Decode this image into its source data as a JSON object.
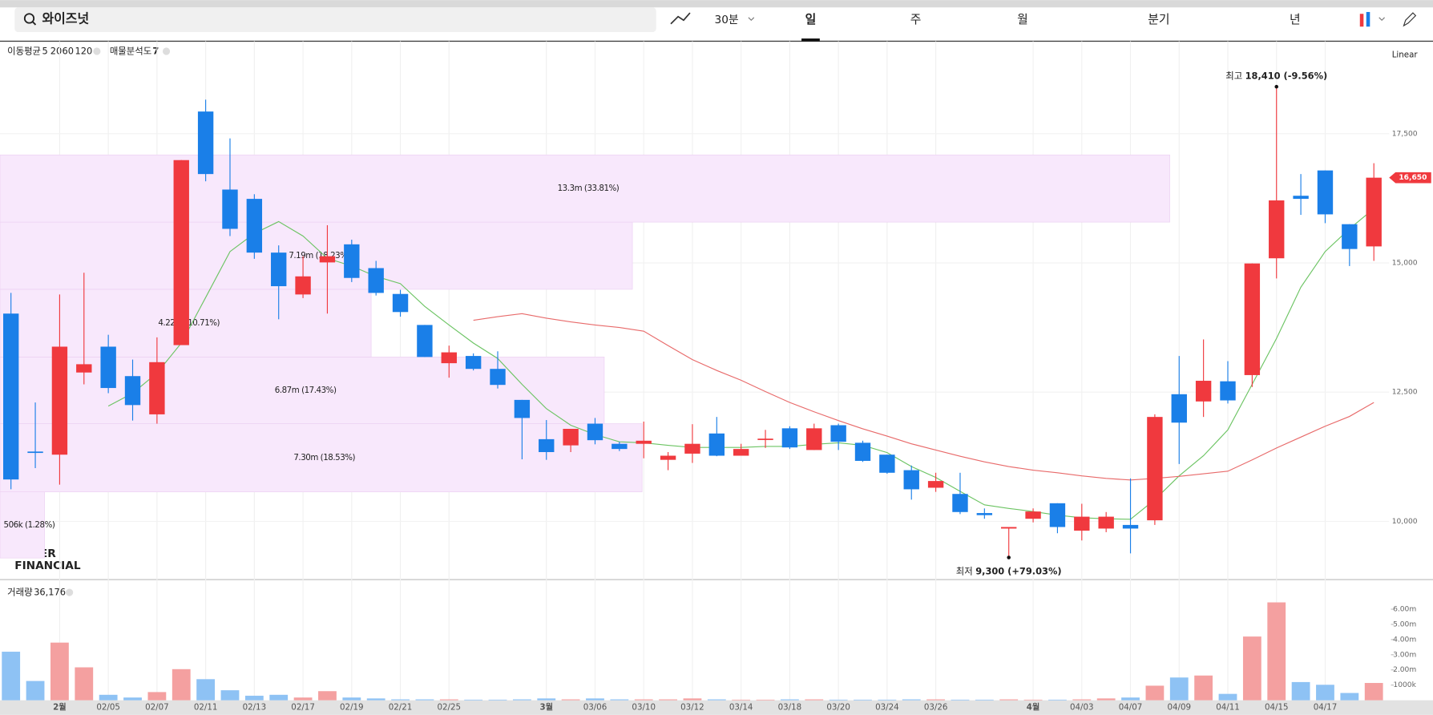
{
  "toolbar": {
    "search": "와이즈넛",
    "interval": "30분",
    "tabs": [
      "일",
      "주",
      "월",
      "분기",
      "년"
    ],
    "selected_tab": 0
  },
  "indicators": {
    "ma_label": "이동평균",
    "profile_label": "매물분석도",
    "profile_count": 7
  },
  "scale_label": "Linear",
  "watermark": [
    "NAVER",
    "FINANCIAL"
  ],
  "chart_data": {
    "type": "candlestick",
    "grid": true,
    "up_color": "#f0393e",
    "down_color": "#1a7fe8",
    "categories": [
      null,
      null,
      "2월",
      null,
      "02/05",
      null,
      "02/07",
      null,
      "02/11",
      null,
      "02/13",
      null,
      "02/17",
      null,
      "02/19",
      null,
      "02/21",
      null,
      "02/25",
      null,
      null,
      null,
      "3월",
      null,
      "03/06",
      null,
      "03/10",
      null,
      "03/12",
      null,
      "03/14",
      null,
      "03/18",
      null,
      "03/20",
      null,
      "03/24",
      null,
      "03/26",
      null,
      null,
      null,
      "4월",
      null,
      "04/03",
      null,
      "04/07",
      null,
      "04/09",
      null,
      "04/11",
      null,
      "04/15",
      null,
      "04/17",
      null,
      null
    ],
    "open": [
      14020,
      11350,
      11290,
      12880,
      13380,
      12810,
      12070,
      13410,
      17930,
      16420,
      16240,
      15200,
      14390,
      15010,
      15360,
      14900,
      14400,
      13800,
      13060,
      13200,
      12950,
      12350,
      11590,
      11470,
      11890,
      11500,
      11500,
      11190,
      11310,
      11700,
      11270,
      11580,
      11800,
      11380,
      11860,
      11520,
      11290,
      10990,
      10650,
      10530,
      10160,
      9860,
      10050,
      10350,
      9820,
      9860,
      9930,
      10020,
      12460,
      12320,
      12710,
      12830,
      15090,
      16300,
      16790,
      15750,
      15320
    ],
    "high": [
      14420,
      12300,
      14390,
      14810,
      13610,
      13130,
      13560,
      16990,
      18160,
      17410,
      16330,
      15340,
      15130,
      15730,
      15450,
      15040,
      14480,
      13800,
      13400,
      13250,
      13290,
      12350,
      11960,
      11790,
      12000,
      11540,
      11930,
      11340,
      11880,
      12020,
      11500,
      11770,
      11840,
      11890,
      11890,
      11560,
      11290,
      11080,
      10940,
      10940,
      10250,
      9890,
      10250,
      10350,
      10340,
      10180,
      10830,
      12070,
      13200,
      13520,
      13100,
      14990,
      18410,
      16720,
      16790,
      15750,
      16930
    ],
    "low": [
      10620,
      11030,
      10710,
      12650,
      12480,
      11950,
      11890,
      13410,
      16580,
      15520,
      15080,
      13910,
      14320,
      14020,
      14630,
      14370,
      13960,
      13180,
      12780,
      12920,
      12570,
      11200,
      11190,
      11340,
      11490,
      11360,
      11220,
      10990,
      11130,
      11260,
      11270,
      11420,
      11400,
      11380,
      11380,
      11150,
      10920,
      10420,
      10570,
      10140,
      10050,
      9300,
      9980,
      9770,
      9630,
      9790,
      9380,
      9930,
      11110,
      12020,
      12280,
      12600,
      14700,
      15930,
      15770,
      14940,
      15040
    ],
    "close": [
      10810,
      11330,
      13380,
      13040,
      12580,
      12250,
      13080,
      16990,
      16720,
      15660,
      15200,
      14550,
      14740,
      15130,
      14710,
      14420,
      14050,
      13180,
      13270,
      12950,
      12640,
      12000,
      11340,
      11790,
      11570,
      11400,
      11560,
      11270,
      11500,
      11270,
      11400,
      11600,
      11430,
      11800,
      11540,
      11170,
      10940,
      10620,
      10780,
      10180,
      10120,
      9890,
      10190,
      9890,
      10090,
      10090,
      9860,
      12020,
      11910,
      12720,
      12340,
      14990,
      16210,
      16240,
      15940,
      15270,
      16650
    ],
    "series": [
      {
        "name": "5",
        "color": "#6cc463",
        "values": [
          null,
          null,
          null,
          null,
          12230,
          12480,
          12870,
          13450,
          14330,
          15220,
          15570,
          15800,
          15520,
          15090,
          14940,
          14740,
          14600,
          14160,
          13800,
          13450,
          13150,
          12650,
          12180,
          11860,
          11680,
          11540,
          11520,
          11470,
          11430,
          11430,
          11430,
          11450,
          11450,
          11490,
          11520,
          11470,
          11330,
          11060,
          10850,
          10580,
          10320,
          10250,
          10190,
          10120,
          10070,
          10050,
          10040,
          10420,
          10880,
          11270,
          11770,
          12650,
          13540,
          14530,
          15220,
          15660,
          16050
        ]
      },
      {
        "name": "20",
        "color": "#e86a6a",
        "values": [
          null,
          null,
          null,
          null,
          null,
          null,
          null,
          null,
          null,
          null,
          null,
          null,
          null,
          null,
          null,
          null,
          null,
          null,
          null,
          13890,
          13960,
          14020,
          13930,
          13860,
          13800,
          13750,
          13680,
          13400,
          13130,
          12920,
          12730,
          12510,
          12300,
          12120,
          11950,
          11790,
          11650,
          11500,
          11380,
          11260,
          11150,
          11060,
          10990,
          10940,
          10880,
          10830,
          10800,
          10830,
          10870,
          10920,
          10970,
          11190,
          11420,
          11630,
          11840,
          12030,
          12300
        ]
      },
      {
        "name": "60",
        "color": "#f0a030",
        "values": [
          null,
          null,
          null,
          null,
          null,
          null,
          null,
          null,
          null,
          null,
          null,
          null,
          null,
          null,
          null,
          null,
          null,
          null,
          null,
          null,
          null,
          null,
          null,
          null,
          null,
          null,
          null,
          null,
          null,
          null,
          null,
          null,
          null,
          null,
          null,
          null,
          null,
          null,
          null,
          null,
          null,
          null,
          null,
          null,
          null,
          null,
          null,
          null,
          null,
          null,
          null,
          null,
          null,
          null,
          null,
          null,
          null
        ]
      },
      {
        "name": "120",
        "color": "#a070d0",
        "values": [
          null,
          null,
          null,
          null,
          null,
          null,
          null,
          null,
          null,
          null,
          null,
          null,
          null,
          null,
          null,
          null,
          null,
          null,
          null,
          null,
          null,
          null,
          null,
          null,
          null,
          null,
          null,
          null,
          null,
          null,
          null,
          null,
          null,
          null,
          null,
          null,
          null,
          null,
          null,
          null,
          null,
          null,
          null,
          null,
          null,
          null,
          null,
          null,
          null,
          null,
          null,
          null,
          null,
          null,
          null,
          null,
          null
        ]
      }
    ],
    "ylim": [
      8890,
      19290
    ],
    "yticks": [
      {
        "value": 10000,
        "label": "10,000"
      },
      {
        "value": 12500,
        "label": "12,500"
      },
      {
        "value": 15000,
        "label": "15,000"
      },
      {
        "value": 17500,
        "label": "17,500"
      }
    ],
    "high_label": {
      "prefix": "최고",
      "text": "18,410 (-9.56%)"
    },
    "low_label": {
      "prefix": "최저",
      "text": "9,300 (+79.03%)"
    },
    "last_label": "16,650",
    "profile_color": "#f8e8fc",
    "volume_profile": [
      {
        "low": 9290,
        "high": 10570,
        "volume": 506000,
        "value_label": "506k (1.28%)"
      },
      {
        "low": 10570,
        "high": 11890,
        "volume": 7300000,
        "value_label": "7.30m (18.53%)"
      },
      {
        "low": 11890,
        "high": 13180,
        "volume": 6870000,
        "value_label": "6.87m (17.43%)"
      },
      {
        "low": 13180,
        "high": 14490,
        "volume": 4220000,
        "value_label": "4.22m (10.71%)"
      },
      {
        "low": 14490,
        "high": 15790,
        "volume": 7190000,
        "value_label": "7.19m (18.23%)"
      },
      {
        "low": 15790,
        "high": 17090,
        "volume": 13300000,
        "value_label": "13.3m (33.81%)"
      }
    ],
    "volume": {
      "title": "거래량",
      "title_value": "36,176",
      "up_color": "#f4a0a0",
      "down_color": "#8ec2f4",
      "values": [
        3200000,
        1270000,
        3800000,
        2170000,
        360000,
        180000,
        540000,
        2050000,
        1390000,
        660000,
        300000,
        360000,
        180000,
        600000,
        180000,
        120000,
        60000,
        60000,
        60000,
        40000,
        40000,
        60000,
        120000,
        60000,
        120000,
        60000,
        60000,
        60000,
        120000,
        60000,
        40000,
        40000,
        60000,
        60000,
        40000,
        40000,
        40000,
        60000,
        60000,
        40000,
        40000,
        60000,
        40000,
        40000,
        60000,
        120000,
        180000,
        960000,
        1500000,
        1630000,
        420000,
        4200000,
        6450000,
        1200000,
        1020000,
        480000,
        1140000
      ],
      "ylim": [
        0,
        7590000
      ],
      "yticks": [
        {
          "value": 1000000,
          "label": "1000k"
        },
        {
          "value": 2000000,
          "label": "2.00m"
        },
        {
          "value": 3000000,
          "label": "3.00m"
        },
        {
          "value": 4000000,
          "label": "4.00m"
        },
        {
          "value": 5000000,
          "label": "5.00m"
        },
        {
          "value": 6000000,
          "label": "6.00m"
        }
      ]
    }
  }
}
